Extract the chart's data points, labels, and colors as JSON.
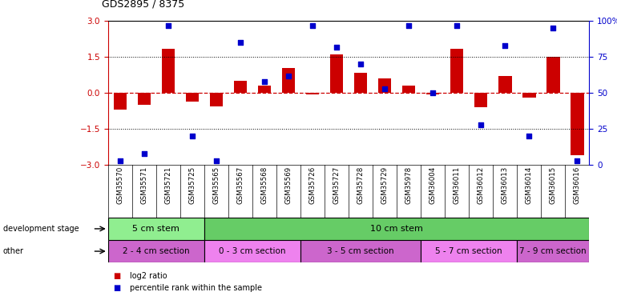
{
  "title": "GDS2895 / 8375",
  "samples": [
    "GSM35570",
    "GSM35571",
    "GSM35721",
    "GSM35725",
    "GSM35565",
    "GSM35567",
    "GSM35568",
    "GSM35569",
    "GSM35726",
    "GSM35727",
    "GSM35728",
    "GSM35729",
    "GSM35978",
    "GSM36004",
    "GSM36011",
    "GSM36012",
    "GSM36013",
    "GSM36014",
    "GSM36015",
    "GSM36016"
  ],
  "log2_ratio": [
    -0.7,
    -0.5,
    1.85,
    -0.35,
    -0.55,
    0.5,
    0.3,
    1.05,
    -0.05,
    1.6,
    0.85,
    0.6,
    0.3,
    -0.05,
    1.85,
    -0.6,
    0.7,
    -0.18,
    1.5,
    -2.6
  ],
  "percentile": [
    3,
    8,
    97,
    20,
    3,
    85,
    58,
    62,
    97,
    82,
    70,
    53,
    97,
    50,
    97,
    28,
    83,
    20,
    95,
    3
  ],
  "ylim": [
    -3,
    3
  ],
  "yticks_left": [
    -3,
    -1.5,
    0,
    1.5,
    3
  ],
  "yticks_right": [
    0,
    25,
    50,
    75,
    100
  ],
  "bar_color": "#cc0000",
  "dot_color": "#0000cc",
  "zero_line_color": "#cc0000",
  "hline_color": "#000000",
  "hlines": [
    1.5,
    -1.5
  ],
  "bg_color": "#ffffff",
  "dev_stage_groups": [
    {
      "label": "5 cm stem",
      "start": 0,
      "end": 3,
      "color": "#90ee90"
    },
    {
      "label": "10 cm stem",
      "start": 4,
      "end": 19,
      "color": "#66cc66"
    }
  ],
  "other_groups": [
    {
      "label": "2 - 4 cm section",
      "start": 0,
      "end": 3,
      "color": "#cc66cc"
    },
    {
      "label": "0 - 3 cm section",
      "start": 4,
      "end": 7,
      "color": "#ee82ee"
    },
    {
      "label": "3 - 5 cm section",
      "start": 8,
      "end": 12,
      "color": "#cc66cc"
    },
    {
      "label": "5 - 7 cm section",
      "start": 13,
      "end": 16,
      "color": "#ee82ee"
    },
    {
      "label": "7 - 9 cm section",
      "start": 17,
      "end": 19,
      "color": "#cc66cc"
    }
  ],
  "legend_items": [
    {
      "label": "log2 ratio",
      "color": "#cc0000"
    },
    {
      "label": "percentile rank within the sample",
      "color": "#0000cc"
    }
  ]
}
